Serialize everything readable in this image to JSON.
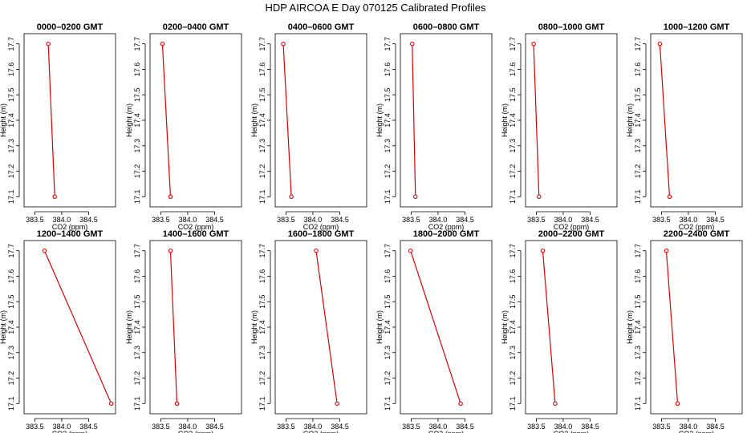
{
  "main_title": "HDP AIRCOA E  Day 070125  Calibrated Profiles",
  "colors": {
    "line": "#dd0000",
    "point": "#dd0000",
    "axis": "#000000"
  },
  "chart_data": {
    "type": "line",
    "title": "HDP AIRCOA E  Day 070125  Calibrated Profiles",
    "xlabel": "CO2 (ppm)",
    "ylabel": "Height (m)",
    "xlim": [
      383.3,
      385.0
    ],
    "ylim": [
      17.06,
      17.74
    ],
    "x_ticks": [
      "383.5",
      "384.0",
      "384.5"
    ],
    "x_tick_values": [
      383.5,
      384.0,
      384.5
    ],
    "y_ticks": [
      "17.1",
      "17.2",
      "17.3",
      "17.4",
      "17.5",
      "17.6",
      "17.7"
    ],
    "y_tick_values": [
      17.1,
      17.2,
      17.3,
      17.4,
      17.5,
      17.6,
      17.7
    ],
    "grid": false,
    "panels": [
      {
        "title": "0000–0200 GMT",
        "points": [
          {
            "x": 383.75,
            "y": 17.7
          },
          {
            "x": 383.87,
            "y": 17.1
          }
        ]
      },
      {
        "title": "0200–0400 GMT",
        "points": [
          {
            "x": 383.53,
            "y": 17.7
          },
          {
            "x": 383.68,
            "y": 17.1
          }
        ]
      },
      {
        "title": "0400–0600 GMT",
        "points": [
          {
            "x": 383.45,
            "y": 17.7
          },
          {
            "x": 383.6,
            "y": 17.1
          }
        ]
      },
      {
        "title": "0600–0800 GMT",
        "points": [
          {
            "x": 383.52,
            "y": 17.7
          },
          {
            "x": 383.58,
            "y": 17.1
          }
        ]
      },
      {
        "title": "0800–1000 GMT",
        "points": [
          {
            "x": 383.45,
            "y": 17.7
          },
          {
            "x": 383.55,
            "y": 17.1
          }
        ]
      },
      {
        "title": "1000–1200 GMT",
        "points": [
          {
            "x": 383.47,
            "y": 17.7
          },
          {
            "x": 383.65,
            "y": 17.1
          }
        ]
      },
      {
        "title": "1200–1400 GMT",
        "points": [
          {
            "x": 383.68,
            "y": 17.7
          },
          {
            "x": 384.92,
            "y": 17.1
          }
        ]
      },
      {
        "title": "1400–1600 GMT",
        "points": [
          {
            "x": 383.68,
            "y": 17.7
          },
          {
            "x": 383.8,
            "y": 17.1
          }
        ]
      },
      {
        "title": "1600–1800 GMT",
        "points": [
          {
            "x": 384.06,
            "y": 17.7
          },
          {
            "x": 384.45,
            "y": 17.1
          }
        ]
      },
      {
        "title": "1800–2000 GMT",
        "points": [
          {
            "x": 383.49,
            "y": 17.7
          },
          {
            "x": 384.42,
            "y": 17.1
          }
        ]
      },
      {
        "title": "2000–2200 GMT",
        "points": [
          {
            "x": 383.62,
            "y": 17.7
          },
          {
            "x": 383.85,
            "y": 17.1
          }
        ]
      },
      {
        "title": "2200–2400 GMT",
        "points": [
          {
            "x": 383.59,
            "y": 17.7
          },
          {
            "x": 383.8,
            "y": 17.1
          }
        ]
      }
    ]
  }
}
